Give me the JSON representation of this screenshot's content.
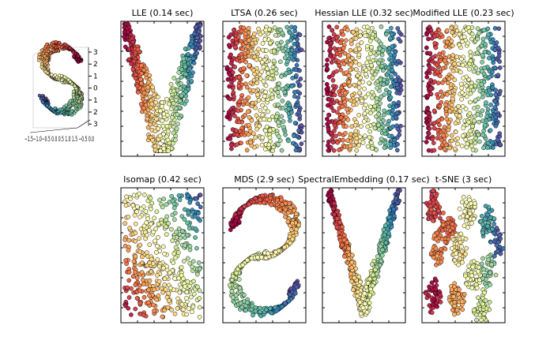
{
  "chart_data": [
    {
      "type": "scatter",
      "id": "s_curve_3d",
      "title": "",
      "xlabel": "",
      "ylabel": "",
      "z_tick_labels": [
        "3",
        "2",
        "1",
        "0",
        "1",
        "2",
        "3"
      ],
      "x_tick_labels_text": "−1.5−1.0−0.5 0.0 0.5 1.0 1.5 −0.5 0.0",
      "shape": "S-curve manifold, 3D scatter",
      "colormap": "Spectral",
      "grid": false
    },
    {
      "type": "scatter",
      "id": "lle",
      "title": "LLE (0.14 sec)",
      "shape": "arch (inverted V)",
      "colormap": "Spectral",
      "grid": false
    },
    {
      "type": "scatter",
      "id": "ltsa",
      "title": "LTSA (0.26 sec)",
      "shape": "rectangle with color varying left to right",
      "colormap": "Spectral",
      "grid": false
    },
    {
      "type": "scatter",
      "id": "hessian_lle",
      "title": "Hessian LLE (0.32 sec)",
      "shape": "rectangle with color varying left to right",
      "colormap": "Spectral",
      "grid": false
    },
    {
      "type": "scatter",
      "id": "modified_lle",
      "title": "Modified LLE (0.23 sec)",
      "shape": "rectangle with color varying left to right",
      "colormap": "Spectral",
      "grid": false
    },
    {
      "type": "scatter",
      "id": "isomap",
      "title": "Isomap (0.42 sec)",
      "shape": "rectangle with diagonal color gradient",
      "colormap": "Spectral",
      "grid": false
    },
    {
      "type": "scatter",
      "id": "mds",
      "title": "MDS (2.9 sec)",
      "shape": "S curve",
      "colormap": "Spectral",
      "grid": false
    },
    {
      "type": "scatter",
      "id": "spectral_embedding",
      "title": "SpectralEmbedding (0.17 sec)",
      "shape": "inverted V (arch)",
      "colormap": "Spectral",
      "grid": false
    },
    {
      "type": "scatter",
      "id": "tsne",
      "title": "t-SNE (3 sec)",
      "shape": "fragmented clusters",
      "colormap": "Spectral",
      "grid": false
    }
  ],
  "colormap": "Spectral",
  "colors": {
    "red": "#9e0142",
    "orange": "#f46d43",
    "yellow": "#ffffbf",
    "green": "#66c2a5",
    "blue": "#5e4fa2"
  }
}
